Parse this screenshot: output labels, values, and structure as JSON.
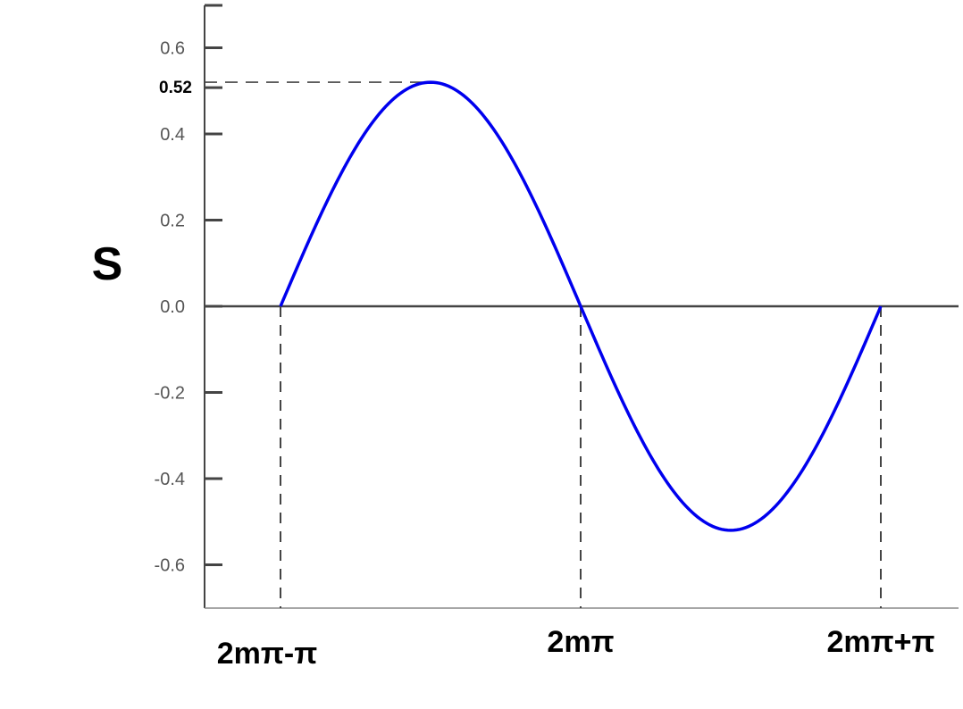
{
  "chart_data": {
    "type": "line",
    "ylabel": "S",
    "xlabel": "",
    "ylim": [
      -0.7,
      0.7
    ],
    "y_ticks": [
      "0.6",
      "0.4",
      "0.2",
      "0.0",
      "-0.2",
      "-0.4",
      "-0.6"
    ],
    "y_tick_values": [
      0.6,
      0.4,
      0.2,
      0.0,
      -0.2,
      -0.4,
      -0.6
    ],
    "x_labels": [
      "2mπ-π",
      "2mπ",
      "2mπ+π"
    ],
    "peak_label": "0.52",
    "peak_value": 0.52,
    "grid": false,
    "series": [
      {
        "x": [
          "2mπ-π",
          "2mπ",
          "2mπ+π"
        ],
        "amplitude": 0.52,
        "shape": "sine, zero at 2mπ-π, 2mπ, 2mπ+π; positive lobe between 2mπ-π and 2mπ, negative lobe between 2mπ and 2mπ+π",
        "color": "#0000ee"
      }
    ],
    "colors": {
      "curve": "#0000ee",
      "axis": "#444444",
      "dashed": "#444444"
    }
  }
}
